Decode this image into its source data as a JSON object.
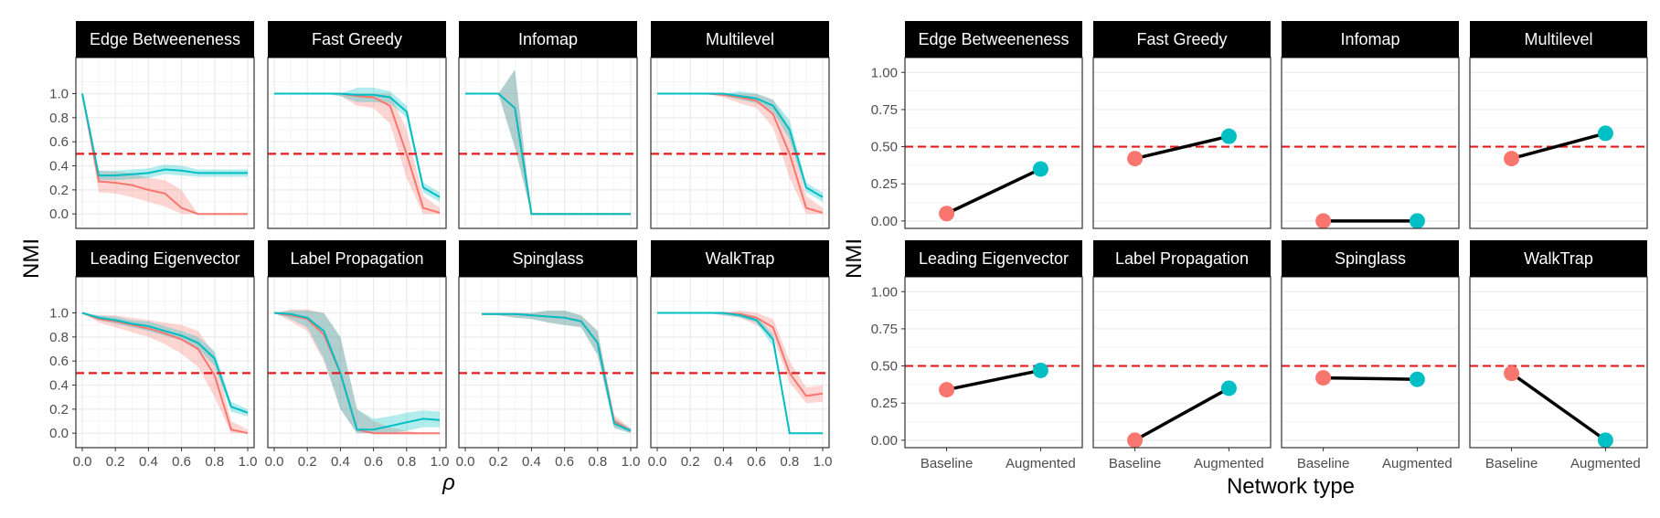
{
  "colors": {
    "baseline": "#f8766d",
    "augmented": "#00bfc4",
    "threshold": "#e41a1c",
    "strip": "#000000",
    "grid": "#ebebeb"
  },
  "left_panel": {
    "ylabel": "NMI",
    "xlabel": "ρ",
    "x_ticks": [
      "0.0",
      "0.2",
      "0.4",
      "0.6",
      "0.8",
      "1.0"
    ],
    "y_ticks": [
      "0.0",
      "0.2",
      "0.4",
      "0.6",
      "0.8",
      "1.0"
    ]
  },
  "right_panel": {
    "ylabel": "NMI",
    "xlabel": "Network type",
    "x_ticks": [
      "Baseline",
      "Augmented"
    ],
    "y_ticks": [
      "0.00",
      "0.25",
      "0.50",
      "0.75",
      "1.00"
    ]
  },
  "chart_data": [
    {
      "type": "line",
      "name": "robustness-vs-rho",
      "xlabel": "ρ",
      "ylabel": "NMI",
      "xlim": [
        0,
        1
      ],
      "ylim": [
        -0.12,
        1.3
      ],
      "threshold": 0.5,
      "x": [
        0,
        0.1,
        0.2,
        0.3,
        0.4,
        0.5,
        0.6,
        0.7,
        0.8,
        0.9,
        1.0
      ],
      "facets": [
        {
          "title": "Edge Betweeneness",
          "series": [
            {
              "key": "baseline",
              "values": [
                1.0,
                0.27,
                0.26,
                0.24,
                0.2,
                0.17,
                0.05,
                0.0,
                0.0,
                0.0,
                0.0
              ],
              "lower": [
                1.0,
                0.18,
                0.17,
                0.14,
                0.1,
                0.06,
                0.0,
                0.0,
                0.0,
                0.0,
                0.0
              ],
              "upper": [
                1.0,
                0.36,
                0.35,
                0.34,
                0.3,
                0.28,
                0.2,
                0.0,
                0.0,
                0.0,
                0.0
              ]
            },
            {
              "key": "augmented",
              "values": [
                1.0,
                0.32,
                0.32,
                0.33,
                0.34,
                0.37,
                0.36,
                0.34,
                0.34,
                0.34,
                0.34
              ],
              "lower": [
                1.0,
                0.28,
                0.28,
                0.29,
                0.3,
                0.33,
                0.32,
                0.31,
                0.31,
                0.31,
                0.31
              ],
              "upper": [
                1.0,
                0.36,
                0.36,
                0.37,
                0.38,
                0.41,
                0.4,
                0.37,
                0.37,
                0.37,
                0.37
              ]
            }
          ]
        },
        {
          "title": "Fast Greedy",
          "series": [
            {
              "key": "baseline",
              "values": [
                1.0,
                1.0,
                1.0,
                1.0,
                1.0,
                0.98,
                0.97,
                0.9,
                0.5,
                0.05,
                0.01
              ],
              "lower": [
                1.0,
                1.0,
                1.0,
                1.0,
                0.98,
                0.9,
                0.88,
                0.75,
                0.3,
                0.0,
                0.0
              ],
              "upper": [
                1.0,
                1.0,
                1.0,
                1.0,
                1.0,
                1.0,
                1.0,
                1.0,
                0.7,
                0.15,
                0.05
              ]
            },
            {
              "key": "augmented",
              "values": [
                1.0,
                1.0,
                1.0,
                1.0,
                1.0,
                0.99,
                0.99,
                0.97,
                0.85,
                0.22,
                0.14
              ],
              "lower": [
                1.0,
                1.0,
                1.0,
                1.0,
                0.98,
                0.93,
                0.93,
                0.92,
                0.8,
                0.18,
                0.1
              ],
              "upper": [
                1.0,
                1.0,
                1.0,
                1.0,
                1.0,
                1.05,
                1.05,
                1.02,
                0.9,
                0.26,
                0.18
              ]
            }
          ]
        },
        {
          "title": "Infomap",
          "series": [
            {
              "key": "baseline",
              "values": [
                1.0,
                1.0,
                1.0,
                0.88,
                0.0,
                0.0,
                0.0,
                0.0,
                0.0,
                0.0,
                0.0
              ],
              "lower": [
                1.0,
                1.0,
                1.0,
                0.55,
                0.0,
                0.0,
                0.0,
                0.0,
                0.0,
                0.0,
                0.0
              ],
              "upper": [
                1.0,
                1.0,
                1.0,
                1.2,
                0.0,
                0.0,
                0.0,
                0.0,
                0.0,
                0.0,
                0.0
              ]
            },
            {
              "key": "augmented",
              "values": [
                1.0,
                1.0,
                1.0,
                0.88,
                0.0,
                0.0,
                0.0,
                0.0,
                0.0,
                0.0,
                0.0
              ],
              "lower": [
                1.0,
                1.0,
                1.0,
                0.55,
                0.0,
                0.0,
                0.0,
                0.0,
                0.0,
                0.0,
                0.0
              ],
              "upper": [
                1.0,
                1.0,
                1.0,
                1.2,
                0.0,
                0.0,
                0.0,
                0.0,
                0.0,
                0.0,
                0.0
              ]
            }
          ]
        },
        {
          "title": "Multilevel",
          "series": [
            {
              "key": "baseline",
              "values": [
                1.0,
                1.0,
                1.0,
                1.0,
                0.99,
                0.97,
                0.94,
                0.83,
                0.5,
                0.05,
                0.01
              ],
              "lower": [
                1.0,
                1.0,
                1.0,
                1.0,
                0.97,
                0.92,
                0.88,
                0.72,
                0.3,
                0.0,
                0.0
              ],
              "upper": [
                1.0,
                1.0,
                1.0,
                1.0,
                1.0,
                1.0,
                1.0,
                0.95,
                0.72,
                0.15,
                0.05
              ]
            },
            {
              "key": "augmented",
              "values": [
                1.0,
                1.0,
                1.0,
                1.0,
                1.0,
                0.98,
                0.96,
                0.9,
                0.7,
                0.22,
                0.14
              ],
              "lower": [
                1.0,
                1.0,
                1.0,
                1.0,
                0.98,
                0.95,
                0.92,
                0.85,
                0.62,
                0.18,
                0.1
              ],
              "upper": [
                1.0,
                1.0,
                1.0,
                1.0,
                1.0,
                1.02,
                1.0,
                0.95,
                0.78,
                0.26,
                0.18
              ]
            }
          ]
        },
        {
          "title": "Leading Eigenvector",
          "series": [
            {
              "key": "baseline",
              "values": [
                1.0,
                0.95,
                0.93,
                0.9,
                0.87,
                0.83,
                0.78,
                0.7,
                0.48,
                0.03,
                0.0
              ],
              "lower": [
                1.0,
                0.92,
                0.88,
                0.84,
                0.8,
                0.74,
                0.66,
                0.55,
                0.3,
                0.0,
                0.0
              ],
              "upper": [
                1.0,
                0.98,
                0.98,
                0.96,
                0.94,
                0.92,
                0.9,
                0.85,
                0.66,
                0.1,
                0.03
              ]
            },
            {
              "key": "augmented",
              "values": [
                1.0,
                0.96,
                0.94,
                0.91,
                0.89,
                0.85,
                0.81,
                0.75,
                0.62,
                0.22,
                0.17
              ],
              "lower": [
                1.0,
                0.94,
                0.91,
                0.88,
                0.85,
                0.81,
                0.77,
                0.7,
                0.56,
                0.18,
                0.14
              ],
              "upper": [
                1.0,
                0.98,
                0.97,
                0.94,
                0.93,
                0.89,
                0.85,
                0.8,
                0.68,
                0.26,
                0.2
              ]
            }
          ]
        },
        {
          "title": "Label Propagation",
          "series": [
            {
              "key": "baseline",
              "values": [
                1.0,
                0.98,
                0.95,
                0.82,
                0.5,
                0.03,
                0.0,
                0.0,
                0.0,
                0.0,
                0.0
              ],
              "lower": [
                1.0,
                0.93,
                0.85,
                0.6,
                0.2,
                0.0,
                0.0,
                0.0,
                0.0,
                0.0,
                0.0
              ],
              "upper": [
                1.0,
                1.03,
                1.03,
                1.0,
                0.8,
                0.2,
                0.1,
                0.05,
                0.02,
                0.0,
                0.0
              ]
            },
            {
              "key": "augmented",
              "values": [
                1.0,
                0.99,
                0.96,
                0.85,
                0.5,
                0.03,
                0.03,
                0.06,
                0.09,
                0.12,
                0.11
              ],
              "lower": [
                1.0,
                0.95,
                0.88,
                0.62,
                0.2,
                0.0,
                0.0,
                0.0,
                0.02,
                0.05,
                0.05
              ],
              "upper": [
                1.0,
                1.02,
                1.02,
                1.0,
                0.8,
                0.2,
                0.12,
                0.14,
                0.17,
                0.19,
                0.18
              ]
            }
          ]
        },
        {
          "title": "Spinglass",
          "series": [
            {
              "key": "baseline",
              "values": [
                null,
                0.99,
                0.99,
                0.99,
                0.98,
                0.97,
                0.96,
                0.93,
                0.75,
                0.1,
                0.02
              ],
              "lower": [
                null,
                0.99,
                0.98,
                0.96,
                0.95,
                0.92,
                0.9,
                0.88,
                0.65,
                0.05,
                0.0
              ],
              "upper": [
                null,
                1.0,
                1.0,
                1.0,
                1.0,
                1.02,
                1.02,
                0.98,
                0.85,
                0.15,
                0.04
              ]
            },
            {
              "key": "augmented",
              "values": [
                null,
                0.99,
                0.99,
                0.99,
                0.98,
                0.97,
                0.96,
                0.93,
                0.75,
                0.08,
                0.02
              ],
              "lower": [
                null,
                0.99,
                0.98,
                0.96,
                0.95,
                0.92,
                0.9,
                0.88,
                0.65,
                0.04,
                0.0
              ],
              "upper": [
                null,
                1.0,
                1.0,
                1.0,
                1.0,
                1.02,
                1.02,
                0.98,
                0.85,
                0.12,
                0.04
              ]
            }
          ]
        },
        {
          "title": "WalkTrap",
          "series": [
            {
              "key": "baseline",
              "values": [
                1.0,
                1.0,
                1.0,
                1.0,
                1.0,
                0.99,
                0.96,
                0.88,
                0.5,
                0.31,
                0.33
              ],
              "lower": [
                1.0,
                1.0,
                1.0,
                1.0,
                0.98,
                0.96,
                0.9,
                0.8,
                0.42,
                0.25,
                0.26
              ],
              "upper": [
                1.0,
                1.0,
                1.0,
                1.0,
                1.0,
                1.02,
                1.0,
                0.95,
                0.6,
                0.38,
                0.4
              ]
            },
            {
              "key": "augmented",
              "values": [
                1.0,
                1.0,
                1.0,
                1.0,
                1.0,
                0.98,
                0.94,
                0.78,
                0.0,
                0.0,
                0.0
              ],
              "lower": [
                1.0,
                1.0,
                1.0,
                1.0,
                0.98,
                0.96,
                0.92,
                0.72,
                0.0,
                0.0,
                0.0
              ],
              "upper": [
                1.0,
                1.0,
                1.0,
                1.0,
                1.0,
                1.0,
                0.97,
                0.82,
                0.0,
                0.0,
                0.0
              ]
            }
          ]
        }
      ]
    },
    {
      "type": "scatter",
      "name": "baseline-vs-augmented",
      "xlabel": "Network type",
      "ylabel": "NMI",
      "categories": [
        "Baseline",
        "Augmented"
      ],
      "ylim": [
        -0.05,
        1.1
      ],
      "threshold": 0.5,
      "facets": [
        {
          "title": "Edge Betweeneness",
          "values": [
            0.05,
            0.35
          ]
        },
        {
          "title": "Fast Greedy",
          "values": [
            0.42,
            0.57
          ]
        },
        {
          "title": "Infomap",
          "values": [
            0.0,
            0.0
          ]
        },
        {
          "title": "Multilevel",
          "values": [
            0.42,
            0.59
          ]
        },
        {
          "title": "Leading Eigenvector",
          "values": [
            0.34,
            0.47
          ]
        },
        {
          "title": "Label Propagation",
          "values": [
            0.0,
            0.35
          ]
        },
        {
          "title": "Spinglass",
          "values": [
            0.42,
            0.41
          ]
        },
        {
          "title": "WalkTrap",
          "values": [
            0.45,
            0.0
          ]
        }
      ]
    }
  ]
}
